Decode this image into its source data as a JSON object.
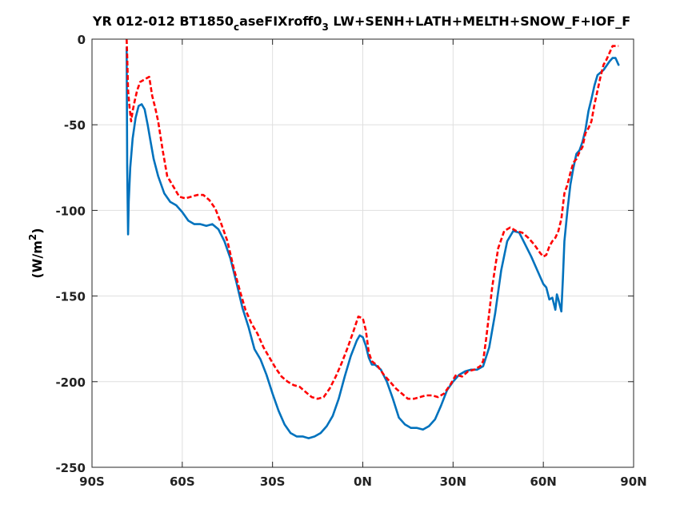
{
  "chart_data": {
    "type": "line",
    "title": {
      "part1": "YR 012-012 BT1850",
      "sub1": "c",
      "part2": "aseFIXroff0",
      "sub2": "3",
      "part3": " LW+SENH+LATH+MELTH+SNOW_F+IOF_F"
    },
    "ylabel": {
      "main": "(W/m",
      "sup": "2",
      "close": ")"
    },
    "xlabel": "",
    "xlim": [
      -90,
      90
    ],
    "ylim": [
      -250,
      0
    ],
    "xticks": [
      -90,
      -60,
      -30,
      0,
      30,
      60,
      90
    ],
    "xtick_labels": [
      "90S",
      "60S",
      "30S",
      "0N",
      "30N",
      "60N",
      "90N"
    ],
    "yticks": [
      -250,
      -200,
      -150,
      -100,
      -50,
      0
    ],
    "ytick_labels": [
      "-250",
      "-200",
      "-150",
      "-100",
      "-50",
      "0"
    ],
    "grid": true,
    "series": [
      {
        "color": "#0072bd",
        "style": "solid",
        "points": [
          [
            -78.5,
            -5
          ],
          [
            -78.3,
            -75
          ],
          [
            -78.0,
            -114
          ],
          [
            -77.8,
            -95
          ],
          [
            -77.3,
            -75
          ],
          [
            -76.5,
            -58
          ],
          [
            -75.5,
            -46
          ],
          [
            -74.5,
            -39
          ],
          [
            -73.5,
            -38
          ],
          [
            -72.5,
            -41
          ],
          [
            -71.5,
            -50
          ],
          [
            -70.5,
            -60
          ],
          [
            -69.5,
            -70
          ],
          [
            -68,
            -80
          ],
          [
            -66,
            -90
          ],
          [
            -64,
            -95
          ],
          [
            -62,
            -97
          ],
          [
            -60,
            -101
          ],
          [
            -58,
            -106
          ],
          [
            -56,
            -108
          ],
          [
            -54,
            -108
          ],
          [
            -52,
            -109
          ],
          [
            -50,
            -108
          ],
          [
            -48,
            -111
          ],
          [
            -46,
            -118
          ],
          [
            -44,
            -128
          ],
          [
            -42,
            -142
          ],
          [
            -40,
            -157
          ],
          [
            -38,
            -168
          ],
          [
            -36,
            -181
          ],
          [
            -34,
            -187
          ],
          [
            -32,
            -196
          ],
          [
            -30,
            -207
          ],
          [
            -28,
            -217
          ],
          [
            -26,
            -225
          ],
          [
            -24,
            -230
          ],
          [
            -22,
            -232
          ],
          [
            -20,
            -232
          ],
          [
            -18,
            -233
          ],
          [
            -16,
            -232
          ],
          [
            -14,
            -230
          ],
          [
            -12,
            -226
          ],
          [
            -10,
            -220
          ],
          [
            -8,
            -210
          ],
          [
            -6,
            -197
          ],
          [
            -4,
            -185
          ],
          [
            -2,
            -176
          ],
          [
            -1,
            -173
          ],
          [
            0,
            -174
          ],
          [
            1,
            -179
          ],
          [
            2,
            -186
          ],
          [
            3,
            -190
          ],
          [
            4,
            -190
          ],
          [
            6,
            -193
          ],
          [
            8,
            -200
          ],
          [
            10,
            -210
          ],
          [
            12,
            -221
          ],
          [
            14,
            -225
          ],
          [
            16,
            -227
          ],
          [
            18,
            -227
          ],
          [
            20,
            -228
          ],
          [
            22,
            -226
          ],
          [
            24,
            -222
          ],
          [
            26,
            -214
          ],
          [
            28,
            -205
          ],
          [
            30,
            -200
          ],
          [
            32,
            -196
          ],
          [
            34,
            -194
          ],
          [
            36,
            -193
          ],
          [
            38,
            -193
          ],
          [
            40,
            -191
          ],
          [
            42,
            -180
          ],
          [
            44,
            -160
          ],
          [
            46,
            -135
          ],
          [
            48,
            -118
          ],
          [
            50,
            -112
          ],
          [
            52,
            -113
          ],
          [
            54,
            -120
          ],
          [
            56,
            -127
          ],
          [
            58,
            -135
          ],
          [
            60,
            -143
          ],
          [
            61,
            -145
          ],
          [
            62,
            -152
          ],
          [
            63,
            -151
          ],
          [
            64,
            -158
          ],
          [
            64.5,
            -149
          ],
          [
            65,
            -152
          ],
          [
            66,
            -159
          ],
          [
            66.5,
            -140
          ],
          [
            67,
            -118
          ],
          [
            68,
            -100
          ],
          [
            69,
            -85
          ],
          [
            70,
            -75
          ],
          [
            71,
            -67
          ],
          [
            72,
            -65
          ],
          [
            73,
            -60
          ],
          [
            74,
            -53
          ],
          [
            75,
            -42
          ],
          [
            76,
            -35
          ],
          [
            77,
            -27
          ],
          [
            78,
            -21
          ],
          [
            80,
            -18
          ],
          [
            82,
            -13
          ],
          [
            83,
            -11
          ],
          [
            84,
            -11
          ],
          [
            85,
            -15
          ]
        ]
      },
      {
        "color": "#ff0000",
        "style": "dashed",
        "points": [
          [
            -78.5,
            0
          ],
          [
            -78.3,
            -10
          ],
          [
            -78.0,
            -30
          ],
          [
            -77.5,
            -40
          ],
          [
            -77.0,
            -48
          ],
          [
            -76.5,
            -42
          ],
          [
            -75.8,
            -36
          ],
          [
            -75.0,
            -30
          ],
          [
            -74.0,
            -25
          ],
          [
            -73.0,
            -24
          ],
          [
            -72.0,
            -23
          ],
          [
            -71.0,
            -22
          ],
          [
            -70.0,
            -33
          ],
          [
            -69.0,
            -40
          ],
          [
            -68.0,
            -48
          ],
          [
            -66.5,
            -65
          ],
          [
            -65,
            -80
          ],
          [
            -63,
            -86
          ],
          [
            -61,
            -92
          ],
          [
            -59,
            -93
          ],
          [
            -57,
            -92
          ],
          [
            -55,
            -91
          ],
          [
            -53,
            -91
          ],
          [
            -51,
            -94
          ],
          [
            -49,
            -99
          ],
          [
            -47,
            -108
          ],
          [
            -45,
            -118
          ],
          [
            -43,
            -133
          ],
          [
            -41,
            -146
          ],
          [
            -39,
            -158
          ],
          [
            -37,
            -166
          ],
          [
            -35,
            -172
          ],
          [
            -33,
            -180
          ],
          [
            -31,
            -186
          ],
          [
            -29,
            -192
          ],
          [
            -27,
            -197
          ],
          [
            -25,
            -200
          ],
          [
            -23,
            -202
          ],
          [
            -21,
            -203
          ],
          [
            -19,
            -206
          ],
          [
            -17,
            -209
          ],
          [
            -15,
            -210
          ],
          [
            -13,
            -209
          ],
          [
            -11,
            -204
          ],
          [
            -9,
            -197
          ],
          [
            -7,
            -189
          ],
          [
            -5,
            -180
          ],
          [
            -3,
            -170
          ],
          [
            -1.5,
            -162
          ],
          [
            0,
            -163
          ],
          [
            1,
            -170
          ],
          [
            2,
            -183
          ],
          [
            3,
            -188
          ],
          [
            5,
            -191
          ],
          [
            7,
            -196
          ],
          [
            9,
            -200
          ],
          [
            11,
            -204
          ],
          [
            13,
            -207
          ],
          [
            15,
            -210
          ],
          [
            17,
            -210
          ],
          [
            19,
            -209
          ],
          [
            21,
            -208
          ],
          [
            23,
            -208
          ],
          [
            25,
            -209
          ],
          [
            27,
            -207
          ],
          [
            29,
            -202
          ],
          [
            31,
            -196
          ],
          [
            33,
            -197
          ],
          [
            35,
            -194
          ],
          [
            37,
            -193
          ],
          [
            39,
            -191
          ],
          [
            40,
            -188
          ],
          [
            41,
            -175
          ],
          [
            42,
            -160
          ],
          [
            43,
            -145
          ],
          [
            44,
            -133
          ],
          [
            45,
            -122
          ],
          [
            47,
            -112
          ],
          [
            49,
            -110
          ],
          [
            51,
            -112
          ],
          [
            53,
            -113
          ],
          [
            55,
            -116
          ],
          [
            57,
            -120
          ],
          [
            59,
            -125
          ],
          [
            60,
            -127
          ],
          [
            61,
            -126
          ],
          [
            62,
            -121
          ],
          [
            63,
            -118
          ],
          [
            64,
            -116
          ],
          [
            65,
            -112
          ],
          [
            66,
            -105
          ],
          [
            67,
            -90
          ],
          [
            68,
            -85
          ],
          [
            69,
            -78
          ],
          [
            70,
            -72
          ],
          [
            71,
            -70
          ],
          [
            72,
            -66
          ],
          [
            73,
            -63
          ],
          [
            74,
            -55
          ],
          [
            75,
            -52
          ],
          [
            76,
            -48
          ],
          [
            77,
            -38
          ],
          [
            78,
            -30
          ],
          [
            79,
            -22
          ],
          [
            80,
            -15
          ],
          [
            81,
            -12
          ],
          [
            82,
            -8
          ],
          [
            83,
            -4
          ],
          [
            84,
            -4
          ],
          [
            85,
            -4
          ]
        ]
      }
    ]
  },
  "colors": {
    "axis": "#262626",
    "grid": "#dfdfdf",
    "series1": "#0072bd",
    "series2": "#ff0000"
  }
}
